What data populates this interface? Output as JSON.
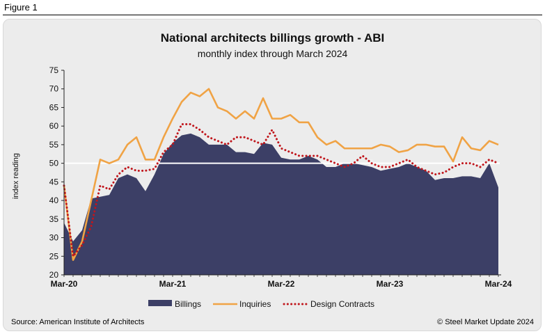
{
  "figure_label": "Figure 1",
  "source_note": "Source: American Institute of Architects",
  "copyright_note": "© Steel Market Update 2024",
  "watermark": "Steel Market Update",
  "colors": {
    "billings": "#3c3f66",
    "inquiries": "#f0a345",
    "design_contracts": "#c0161c",
    "threshold": "#ffffff",
    "background": "#ececec"
  },
  "chart_data": {
    "type": "area",
    "title": "National architects billings growth - ABI",
    "subtitle": "monthly index through March 2024",
    "xlabel": "",
    "ylabel": "index reading",
    "ylim": [
      20,
      75
    ],
    "yticks": [
      20,
      25,
      30,
      35,
      40,
      45,
      50,
      55,
      60,
      65,
      70,
      75
    ],
    "threshold": 50,
    "grid": false,
    "legend_position": "bottom",
    "x_tick_labels": [
      {
        "index": 0,
        "label": "Mar-20"
      },
      {
        "index": 12,
        "label": "Mar-21"
      },
      {
        "index": 24,
        "label": "Mar-22"
      },
      {
        "index": 36,
        "label": "Mar-23"
      },
      {
        "index": 48,
        "label": "Mar-24"
      }
    ],
    "x": [
      "Mar-20",
      "Apr-20",
      "May-20",
      "Jun-20",
      "Jul-20",
      "Aug-20",
      "Sep-20",
      "Oct-20",
      "Nov-20",
      "Dec-20",
      "Jan-21",
      "Feb-21",
      "Mar-21",
      "Apr-21",
      "May-21",
      "Jun-21",
      "Jul-21",
      "Aug-21",
      "Sep-21",
      "Oct-21",
      "Nov-21",
      "Dec-21",
      "Jan-22",
      "Feb-22",
      "Mar-22",
      "Apr-22",
      "May-22",
      "Jun-22",
      "Jul-22",
      "Aug-22",
      "Sep-22",
      "Oct-22",
      "Nov-22",
      "Dec-22",
      "Jan-23",
      "Feb-23",
      "Mar-23",
      "Apr-23",
      "May-23",
      "Jun-23",
      "Jul-23",
      "Aug-23",
      "Sep-23",
      "Oct-23",
      "Nov-23",
      "Dec-23",
      "Jan-24",
      "Feb-24",
      "Mar-24"
    ],
    "series": [
      {
        "name": "Billings",
        "style": "area",
        "values": [
          34,
          29,
          32,
          40.5,
          41,
          41.5,
          46,
          47,
          46,
          42.5,
          47,
          52.5,
          55.5,
          57.5,
          58,
          57,
          55,
          55,
          55,
          53,
          53,
          52.5,
          55.5,
          55,
          51.5,
          51,
          51,
          52,
          51,
          49,
          49,
          50,
          50,
          49.5,
          49,
          48,
          48.5,
          49,
          50,
          49,
          48,
          45.5,
          46,
          46,
          46.5,
          46.5,
          46,
          50,
          43.5
        ]
      },
      {
        "name": "Inquiries",
        "style": "line",
        "values": [
          44,
          24,
          29,
          40,
          51,
          50,
          51,
          55,
          57,
          51,
          51,
          57,
          62,
          66.5,
          69,
          68,
          70,
          65,
          64,
          62,
          64,
          62,
          67.5,
          62,
          62,
          63,
          61,
          61,
          57,
          55,
          56,
          54,
          54,
          54,
          54,
          55,
          54.5,
          53,
          53.5,
          55,
          55,
          54.5,
          54.5,
          50.5,
          57,
          54,
          53.5,
          56,
          55
        ]
      },
      {
        "name": "Design Contracts",
        "style": "dotted",
        "values": [
          44,
          25,
          28,
          33,
          44,
          43,
          47,
          49,
          48,
          48,
          48.5,
          53,
          55,
          60.5,
          60.5,
          59,
          57,
          56,
          55,
          57,
          57,
          56,
          55,
          59,
          54,
          53,
          52,
          52,
          52,
          51,
          50,
          49,
          50,
          52,
          50,
          49,
          49,
          50,
          51,
          49,
          48,
          47,
          47.5,
          49,
          50,
          50,
          49,
          51,
          50
        ]
      }
    ]
  }
}
